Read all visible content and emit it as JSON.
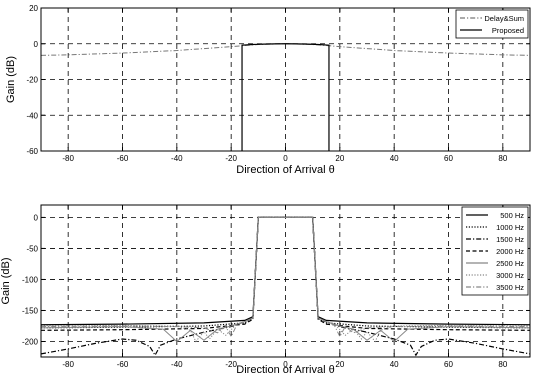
{
  "chart_data": [
    {
      "type": "line",
      "xlabel": "Direction of Arrival θ",
      "ylabel": "Gain (dB)",
      "xlim": [
        -90,
        90
      ],
      "ylim": [
        -60,
        20
      ],
      "xticks": [
        -80,
        -60,
        -40,
        -20,
        0,
        20,
        40,
        60,
        80
      ],
      "yticks": [
        -60,
        -40,
        -20,
        0,
        20
      ],
      "grid": true,
      "legend": "top-right",
      "series": [
        {
          "name": "Delay&Sum",
          "style": "dashdot",
          "color": "#777777",
          "x": [
            -90,
            -80,
            -60,
            -40,
            -20,
            -10,
            0,
            10,
            20,
            40,
            60,
            80,
            90
          ],
          "y": [
            -6.5,
            -6.2,
            -5.2,
            -3.8,
            -1.6,
            -0.4,
            0,
            -0.4,
            -1.6,
            -3.8,
            -5.2,
            -6.2,
            -6.5
          ]
        },
        {
          "name": "Proposed",
          "style": "solid",
          "color": "#000000",
          "x": [
            -16,
            -16,
            -12,
            -8,
            -4,
            0,
            4,
            8,
            12,
            16,
            16
          ],
          "y": [
            -60,
            -0.8,
            -0.4,
            -0.2,
            -0.05,
            0,
            -0.05,
            -0.2,
            -0.4,
            -0.8,
            -60
          ]
        }
      ]
    },
    {
      "type": "line",
      "xlabel": "Direction of Arrival θ",
      "ylabel": "Gain (dB)",
      "xlim": [
        -90,
        90
      ],
      "ylim": [
        -225,
        20
      ],
      "xticks": [
        -80,
        -60,
        -40,
        -20,
        0,
        20,
        40,
        60,
        80
      ],
      "yticks": [
        -200,
        -150,
        -100,
        -50,
        0
      ],
      "grid": true,
      "legend": "top-right",
      "series": [
        {
          "name": "500 Hz",
          "style": "solid",
          "color": "#000000",
          "x": [
            -90,
            -60,
            -30,
            -15,
            -12,
            -10,
            0,
            10,
            12,
            15,
            30,
            60,
            90
          ],
          "y": [
            -173,
            -172,
            -170,
            -166,
            -160,
            0,
            0,
            0,
            -160,
            -166,
            -170,
            -172,
            -173
          ]
        },
        {
          "name": "1000 Hz",
          "style": "dotted",
          "color": "#000000",
          "x": [
            -90,
            -60,
            -30,
            -15,
            -12,
            -10,
            0,
            10,
            12,
            15,
            30,
            60,
            90
          ],
          "y": [
            -178,
            -177,
            -175,
            -170,
            -163,
            0,
            0,
            0,
            -163,
            -170,
            -175,
            -177,
            -178
          ]
        },
        {
          "name": "1500 Hz",
          "style": "dashdot",
          "color": "#000000",
          "x": [
            -90,
            -80,
            -70,
            -60,
            -55,
            -50,
            -48,
            -46,
            -40,
            -30,
            -20,
            -15,
            -12,
            -10,
            0,
            10,
            12,
            15,
            20,
            30,
            40,
            46,
            48,
            50,
            55,
            60,
            70,
            80,
            90
          ],
          "y": [
            -220,
            -212,
            -203,
            -196,
            -198,
            -208,
            -222,
            -206,
            -196,
            -185,
            -176,
            -168,
            -162,
            0,
            0,
            0,
            -162,
            -168,
            -176,
            -185,
            -196,
            -206,
            -222,
            -208,
            -198,
            -196,
            -203,
            -212,
            -220
          ]
        },
        {
          "name": "2000 Hz",
          "style": "dashed",
          "color": "#000000",
          "x": [
            -90,
            -60,
            -30,
            -15,
            -12,
            -10,
            0,
            10,
            12,
            15,
            30,
            60,
            90
          ],
          "y": [
            -182,
            -181,
            -179,
            -172,
            -164,
            0,
            0,
            0,
            -164,
            -172,
            -179,
            -181,
            -182
          ]
        },
        {
          "name": "2500 Hz",
          "style": "solid",
          "color": "#888888",
          "x": [
            -90,
            -60,
            -45,
            -40,
            -35,
            -30,
            -25,
            -20,
            -15,
            -12,
            -10,
            0,
            10,
            12,
            15,
            20,
            25,
            30,
            35,
            40,
            45,
            60,
            90
          ],
          "y": [
            -178,
            -176,
            -180,
            -200,
            -182,
            -198,
            -180,
            -175,
            -168,
            -162,
            0,
            0,
            0,
            -162,
            -168,
            -175,
            -180,
            -198,
            -182,
            -200,
            -180,
            -176,
            -178
          ]
        },
        {
          "name": "3000 Hz",
          "style": "dotted",
          "color": "#888888",
          "x": [
            -90,
            -60,
            -40,
            -35,
            -33,
            -30,
            -28,
            -25,
            -22,
            -18,
            -15,
            -12,
            -10,
            0,
            10,
            12,
            15,
            18,
            22,
            25,
            28,
            30,
            33,
            35,
            40,
            60,
            90
          ],
          "y": [
            -175,
            -174,
            -175,
            -182,
            -200,
            -184,
            -196,
            -180,
            -190,
            -172,
            -168,
            -162,
            0,
            0,
            0,
            -162,
            -168,
            -172,
            -190,
            -180,
            -196,
            -184,
            -200,
            -182,
            -175,
            -174,
            -175
          ]
        },
        {
          "name": "3500 Hz",
          "style": "dashdot",
          "color": "#888888",
          "x": [
            -90,
            -60,
            -40,
            -30,
            -25,
            -22,
            -20,
            -18,
            -15,
            -12,
            -10,
            0,
            10,
            12,
            15,
            18,
            20,
            22,
            25,
            30,
            40,
            60,
            90
          ],
          "y": [
            -176,
            -175,
            -176,
            -178,
            -186,
            -176,
            -192,
            -174,
            -168,
            -162,
            0,
            0,
            0,
            -162,
            -168,
            -174,
            -192,
            -176,
            -186,
            -178,
            -176,
            -175,
            -176
          ]
        }
      ]
    }
  ]
}
